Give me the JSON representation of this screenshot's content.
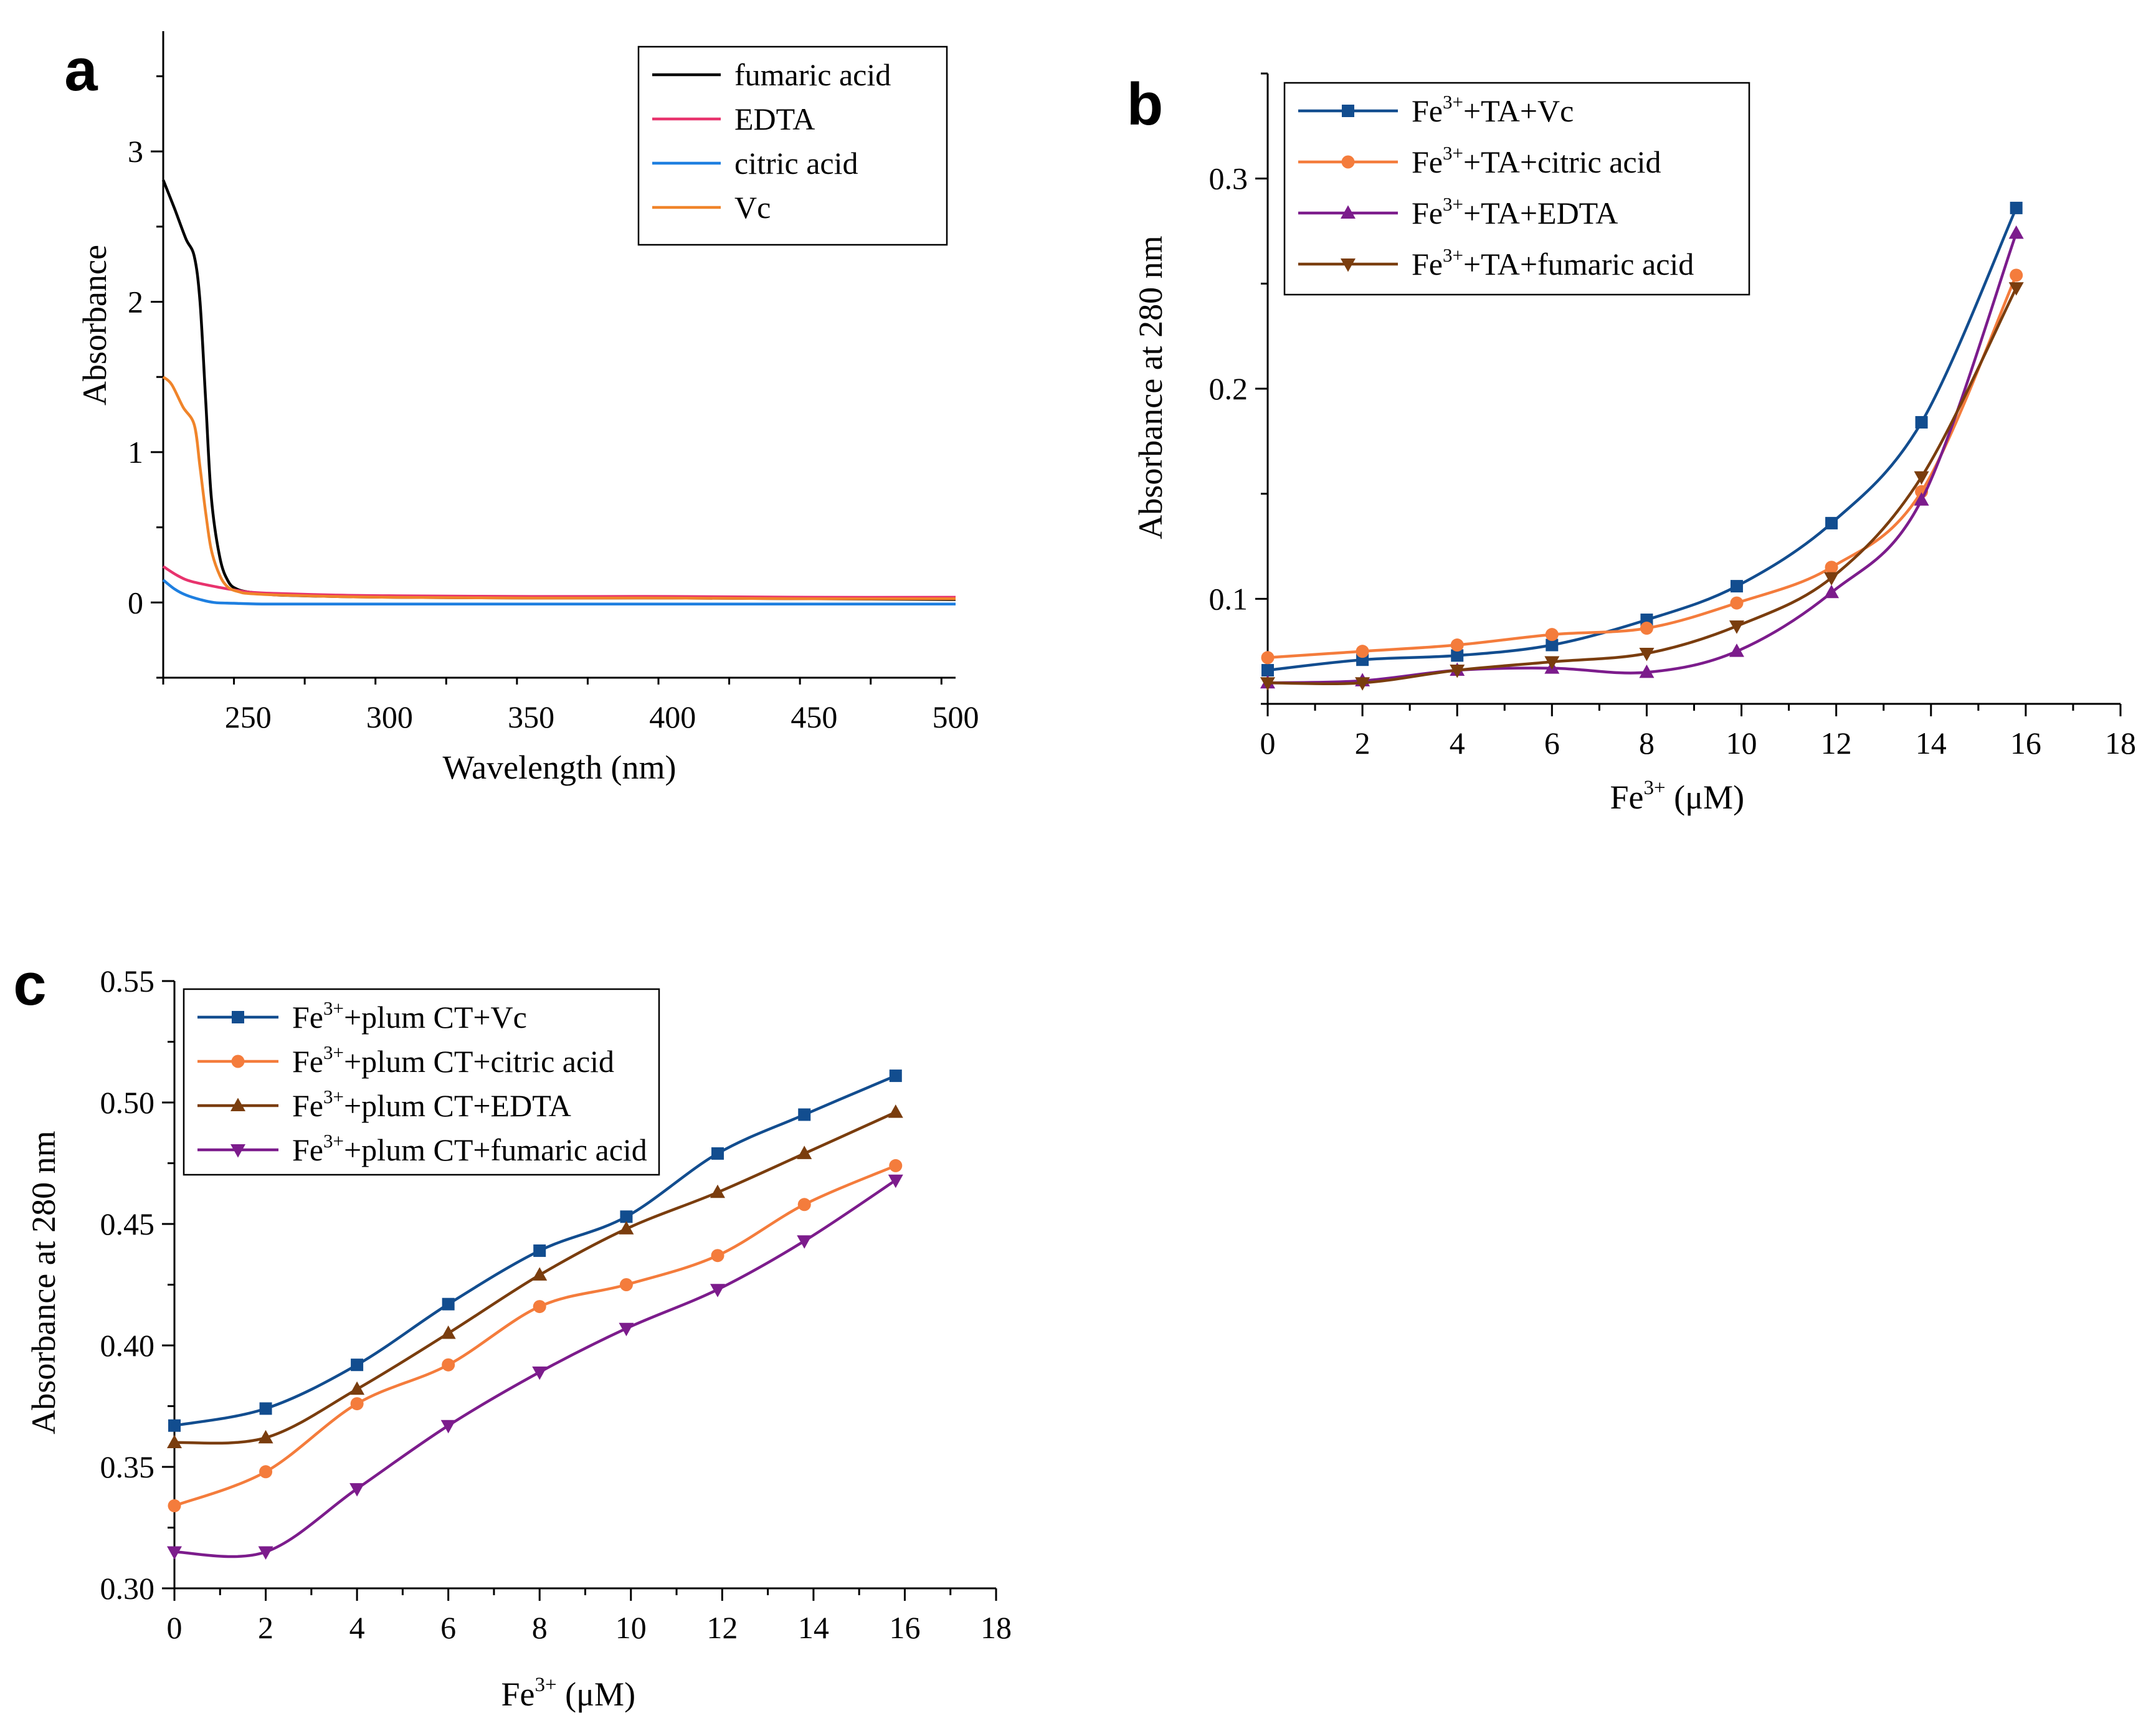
{
  "chart_data": [
    {
      "id": "a",
      "panel_label": "a",
      "type": "line",
      "xlabel": "Wavelength (nm)",
      "ylabel": "Absorbance",
      "xlim": [
        220,
        500
      ],
      "ylim": [
        -0.5,
        3.8
      ],
      "xticks": [
        250,
        300,
        350,
        400,
        450,
        500
      ],
      "yticks": [
        0,
        1,
        2,
        3
      ],
      "legend_position": "top-right",
      "series": [
        {
          "name": "fumaric acid",
          "color": "#000000",
          "marker": "none",
          "x": [
            220,
            224,
            228,
            231,
            233,
            235,
            237,
            240,
            243,
            246,
            250,
            255,
            260,
            280,
            300,
            350,
            400,
            450,
            500
          ],
          "y": [
            2.81,
            2.62,
            2.42,
            2.3,
            2.0,
            1.35,
            0.7,
            0.3,
            0.14,
            0.09,
            0.07,
            0.06,
            0.05,
            0.04,
            0.035,
            0.03,
            0.03,
            0.025,
            0.02
          ]
        },
        {
          "name": "EDTA",
          "color": "#e8336d",
          "marker": "none",
          "x": [
            220,
            225,
            230,
            240,
            250,
            260,
            280,
            300,
            350,
            400,
            450,
            500
          ],
          "y": [
            0.24,
            0.18,
            0.14,
            0.1,
            0.07,
            0.06,
            0.05,
            0.045,
            0.04,
            0.04,
            0.035,
            0.035
          ]
        },
        {
          "name": "citric acid",
          "color": "#1e7fe0",
          "marker": "none",
          "x": [
            220,
            224,
            228,
            233,
            238,
            245,
            255,
            280,
            350,
            400,
            450,
            500
          ],
          "y": [
            0.15,
            0.09,
            0.05,
            0.02,
            0.0,
            -0.005,
            -0.01,
            -0.01,
            -0.01,
            -0.01,
            -0.01,
            -0.01
          ]
        },
        {
          "name": "Vc",
          "color": "#f0842a",
          "marker": "none",
          "x": [
            220,
            223,
            227,
            231,
            233,
            235,
            237,
            240,
            243,
            247,
            250,
            260,
            280,
            300,
            350,
            400,
            450,
            500
          ],
          "y": [
            1.5,
            1.45,
            1.3,
            1.18,
            0.9,
            0.6,
            0.35,
            0.18,
            0.1,
            0.07,
            0.06,
            0.05,
            0.04,
            0.035,
            0.03,
            0.03,
            0.025,
            0.025
          ]
        }
      ]
    },
    {
      "id": "b",
      "panel_label": "b",
      "type": "scatter",
      "xlabel_base": "Fe",
      "xlabel_sup": "3+",
      "xlabel_rest": " (μM)",
      "ylabel": "Absorbance at 280 nm",
      "xlim": [
        0,
        18
      ],
      "ylim": [
        0.05,
        0.35
      ],
      "xticks": [
        0,
        2,
        4,
        6,
        8,
        10,
        12,
        14,
        16,
        18
      ],
      "yticks": [
        0.1,
        0.2,
        0.3
      ],
      "legend_position": "top-left",
      "series": [
        {
          "name": "Fe3+ +TA+Vc",
          "label_base": "Fe",
          "label_sup": "3+",
          "label_rest": "+TA+Vc",
          "color": "#124d8f",
          "marker": "square",
          "x": [
            0,
            2,
            4,
            6,
            8,
            9.9,
            11.9,
            13.8,
            15.8
          ],
          "y": [
            0.066,
            0.071,
            0.073,
            0.078,
            0.09,
            0.106,
            0.136,
            0.184,
            0.286
          ]
        },
        {
          "name": "Fe3+ +TA+citric acid",
          "label_base": "Fe",
          "label_sup": "3+",
          "label_rest": "+TA+citric acid",
          "color": "#f47c3c",
          "marker": "circle",
          "x": [
            0,
            2,
            4,
            6,
            8,
            9.9,
            11.9,
            13.8,
            15.8
          ],
          "y": [
            0.072,
            0.075,
            0.078,
            0.083,
            0.086,
            0.098,
            0.115,
            0.151,
            0.254
          ]
        },
        {
          "name": "Fe3+ +TA+EDTA",
          "label_base": "Fe",
          "label_sup": "3+",
          "label_rest": "+TA+EDTA",
          "color": "#7c1c8c",
          "marker": "triangle-up",
          "x": [
            0,
            2,
            4,
            6,
            8,
            9.9,
            11.9,
            13.8,
            15.8
          ],
          "y": [
            0.06,
            0.061,
            0.066,
            0.067,
            0.065,
            0.075,
            0.103,
            0.147,
            0.274
          ]
        },
        {
          "name": "Fe3+ +TA+fumaric acid",
          "label_base": "Fe",
          "label_sup": "3+",
          "label_rest": "+TA+fumaric acid",
          "color": "#7a3d0e",
          "marker": "triangle-down",
          "x": [
            0,
            2,
            4,
            6,
            8,
            9.9,
            11.9,
            13.8,
            15.8
          ],
          "y": [
            0.06,
            0.06,
            0.066,
            0.07,
            0.074,
            0.087,
            0.11,
            0.158,
            0.248
          ]
        }
      ]
    },
    {
      "id": "c",
      "panel_label": "c",
      "type": "scatter",
      "xlabel_base": "Fe",
      "xlabel_sup": "3+",
      "xlabel_rest": " (μM)",
      "ylabel": "Absorbance at 280 nm",
      "xlim": [
        0,
        18
      ],
      "ylim": [
        0.3,
        0.55
      ],
      "xticks": [
        0,
        2,
        4,
        6,
        8,
        10,
        12,
        14,
        16,
        18
      ],
      "yticks": [
        0.3,
        0.35,
        0.4,
        0.45,
        0.5,
        0.55
      ],
      "ytick_labels": [
        "0.30",
        "0.35",
        "0.40",
        "0.45",
        "0.50",
        "0.55"
      ],
      "legend_position": "top-left",
      "series": [
        {
          "name": "Fe3+ +plum CT+Vc",
          "label_base": "Fe",
          "label_sup": "3+",
          "label_rest": "+plum CT+Vc",
          "color": "#124d8f",
          "marker": "square",
          "x": [
            0,
            2,
            4,
            6,
            8,
            9.9,
            11.9,
            13.8,
            15.8
          ],
          "y": [
            0.367,
            0.374,
            0.392,
            0.417,
            0.439,
            0.453,
            0.479,
            0.495,
            0.511
          ]
        },
        {
          "name": "Fe3+ +plum CT+citric acid",
          "label_base": "Fe",
          "label_sup": "3+",
          "label_rest": "+plum CT+citric acid",
          "color": "#f47c3c",
          "marker": "circle",
          "x": [
            0,
            2,
            4,
            6,
            8,
            9.9,
            11.9,
            13.8,
            15.8
          ],
          "y": [
            0.334,
            0.348,
            0.376,
            0.392,
            0.416,
            0.425,
            0.437,
            0.458,
            0.474
          ]
        },
        {
          "name": "Fe3+ +plum CT+EDTA",
          "label_base": "Fe",
          "label_sup": "3+",
          "label_rest": "+plum CT+EDTA",
          "color": "#7a3d0e",
          "marker": "triangle-up",
          "x": [
            0,
            2,
            4,
            6,
            8,
            9.9,
            11.9,
            13.8,
            15.8
          ],
          "y": [
            0.36,
            0.362,
            0.382,
            0.405,
            0.429,
            0.448,
            0.463,
            0.479,
            0.496
          ]
        },
        {
          "name": "Fe3+ +plum CT+fumaric acid",
          "label_base": "Fe",
          "label_sup": "3+",
          "label_rest": "+plum CT+fumaric acid",
          "color": "#7c1c8c",
          "marker": "triangle-down",
          "x": [
            0,
            2,
            4,
            6,
            8,
            9.9,
            11.9,
            13.8,
            15.8
          ],
          "y": [
            0.315,
            0.315,
            0.341,
            0.367,
            0.389,
            0.407,
            0.423,
            0.443,
            0.468
          ]
        }
      ]
    }
  ]
}
